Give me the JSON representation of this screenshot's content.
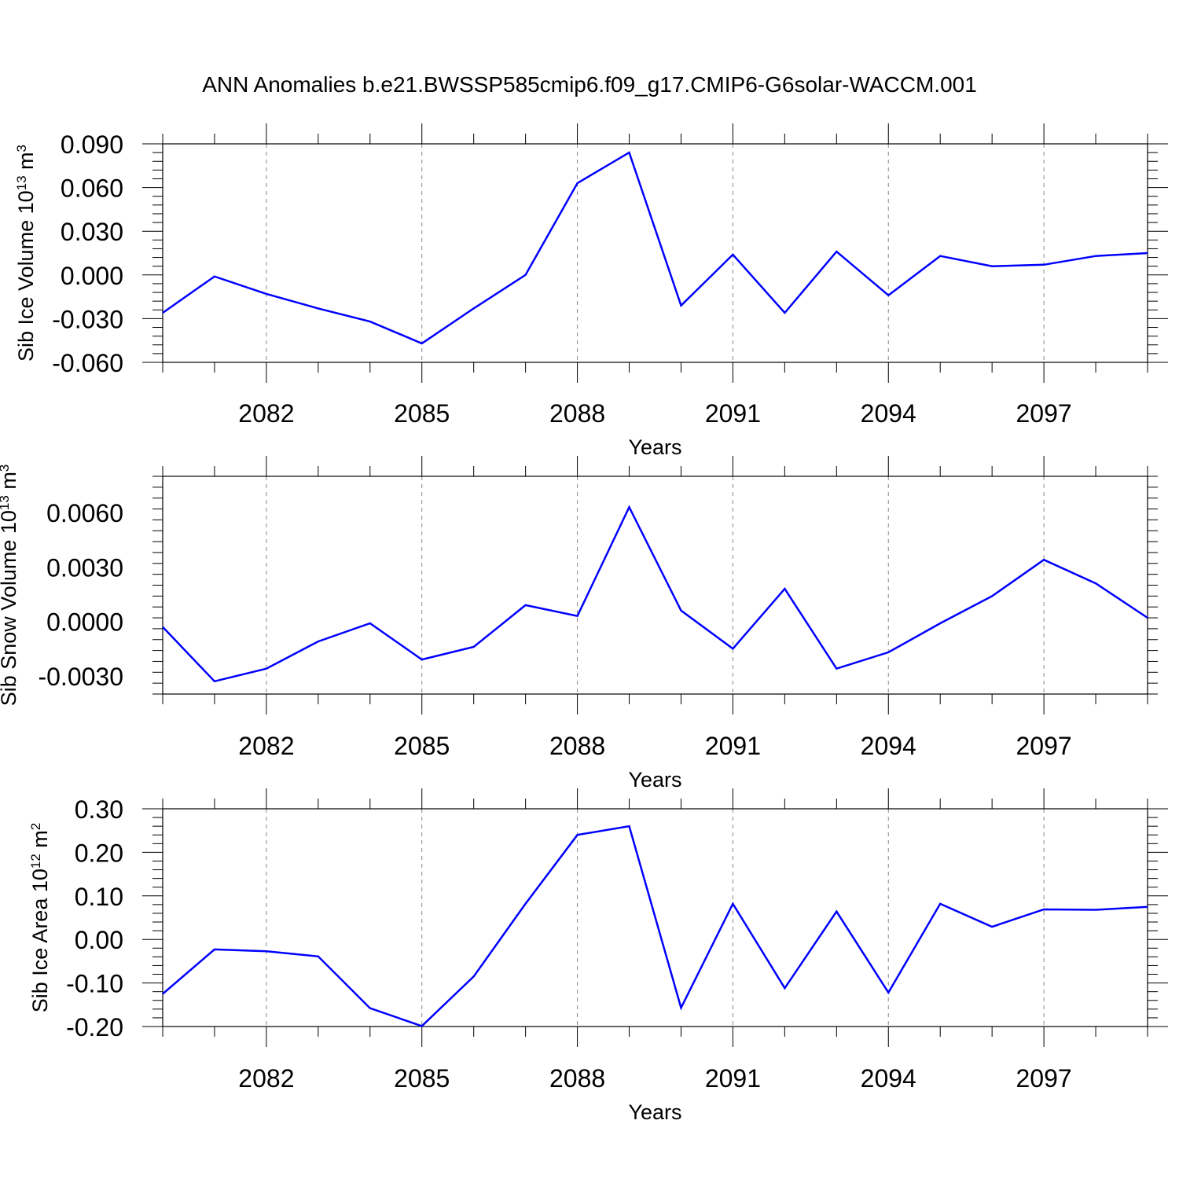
{
  "title": "ANN Anomalies b.e21.BWSSP585cmip6.f09_g17.CMIP6-G6solar-WACCM.001",
  "colors": {
    "series": "#0000ff",
    "axis": "#000000",
    "grid": "#888888"
  },
  "chart_data": [
    {
      "type": "line",
      "xlabel": "Years",
      "ylabel": "Sib Ice Volume",
      "ylabel_unit_base": "10",
      "ylabel_unit_exp": "13",
      "ylabel_unit_suffix": "m",
      "ylabel_unit_suffix_exp": "3",
      "xlim": [
        2080,
        2099
      ],
      "ylim": [
        -0.06,
        0.09
      ],
      "yticks": [
        -0.06,
        -0.03,
        0.0,
        0.03,
        0.06,
        0.09
      ],
      "ytick_labels": [
        "-0.060",
        "-0.030",
        "0.000",
        "0.030",
        "0.060",
        "0.090"
      ],
      "xticks": [
        2082,
        2085,
        2088,
        2091,
        2094,
        2097
      ],
      "xtick_labels": [
        "2082",
        "2085",
        "2088",
        "2091",
        "2094",
        "2097"
      ],
      "grid": "vertical dashed at labeled years",
      "series": [
        {
          "x": [
            2080,
            2081,
            2082,
            2083,
            2084,
            2085,
            2086,
            2087,
            2088,
            2089,
            2090,
            2091,
            2092,
            2093,
            2094,
            2095,
            2096,
            2097,
            2098,
            2099
          ],
          "values": [
            -0.026,
            -0.001,
            -0.013,
            -0.023,
            -0.032,
            -0.047,
            -0.023,
            0.0,
            0.063,
            0.084,
            -0.021,
            0.014,
            -0.026,
            0.016,
            -0.014,
            0.013,
            0.006,
            0.007,
            0.013,
            0.015
          ]
        }
      ]
    },
    {
      "type": "line",
      "xlabel": "Years",
      "ylabel": "Sib Snow Volume",
      "ylabel_unit_base": "10",
      "ylabel_unit_exp": "13",
      "ylabel_unit_suffix": "m",
      "ylabel_unit_suffix_exp": "3",
      "xlim": [
        2080,
        2099
      ],
      "ylim": [
        -0.004,
        0.008
      ],
      "yticks": [
        -0.003,
        0.0,
        0.003,
        0.006
      ],
      "ytick_labels": [
        "-0.0030",
        "0.0000",
        "0.0030",
        "0.0060"
      ],
      "xticks": [
        2082,
        2085,
        2088,
        2091,
        2094,
        2097
      ],
      "xtick_labels": [
        "2082",
        "2085",
        "2088",
        "2091",
        "2094",
        "2097"
      ],
      "grid": "vertical dashed at labeled years",
      "series": [
        {
          "x": [
            2080,
            2081,
            2082,
            2083,
            2084,
            2085,
            2086,
            2087,
            2088,
            2089,
            2090,
            2091,
            2092,
            2093,
            2094,
            2095,
            2096,
            2097,
            2098,
            2099
          ],
          "values": [
            -0.0003,
            -0.0033,
            -0.0026,
            -0.0011,
            -0.0001,
            -0.0021,
            -0.0014,
            0.0009,
            0.0003,
            0.0063,
            0.0006,
            -0.0015,
            0.0018,
            -0.0026,
            -0.0017,
            -0.0001,
            0.0014,
            0.0034,
            0.0021,
            0.0002
          ]
        }
      ]
    },
    {
      "type": "line",
      "xlabel": "Years",
      "ylabel": "Sib Ice Area",
      "ylabel_unit_base": "10",
      "ylabel_unit_exp": "12",
      "ylabel_unit_suffix": "m",
      "ylabel_unit_suffix_exp": "2",
      "xlim": [
        2080,
        2099
      ],
      "ylim": [
        -0.2,
        0.3
      ],
      "yticks": [
        -0.2,
        -0.1,
        0.0,
        0.1,
        0.2,
        0.3
      ],
      "ytick_labels": [
        "-0.20",
        "-0.10",
        "0.00",
        "0.10",
        "0.20",
        "0.30"
      ],
      "xticks": [
        2082,
        2085,
        2088,
        2091,
        2094,
        2097
      ],
      "xtick_labels": [
        "2082",
        "2085",
        "2088",
        "2091",
        "2094",
        "2097"
      ],
      "grid": "vertical dashed at labeled years",
      "series": [
        {
          "x": [
            2080,
            2081,
            2082,
            2083,
            2084,
            2085,
            2086,
            2087,
            2088,
            2089,
            2090,
            2091,
            2092,
            2093,
            2094,
            2095,
            2096,
            2097,
            2098,
            2099
          ],
          "values": [
            -0.125,
            -0.023,
            -0.027,
            -0.039,
            -0.158,
            -0.199,
            -0.085,
            0.082,
            0.24,
            0.26,
            -0.157,
            0.082,
            -0.112,
            0.064,
            -0.122,
            0.082,
            0.029,
            0.069,
            0.068,
            0.075
          ]
        }
      ]
    }
  ]
}
